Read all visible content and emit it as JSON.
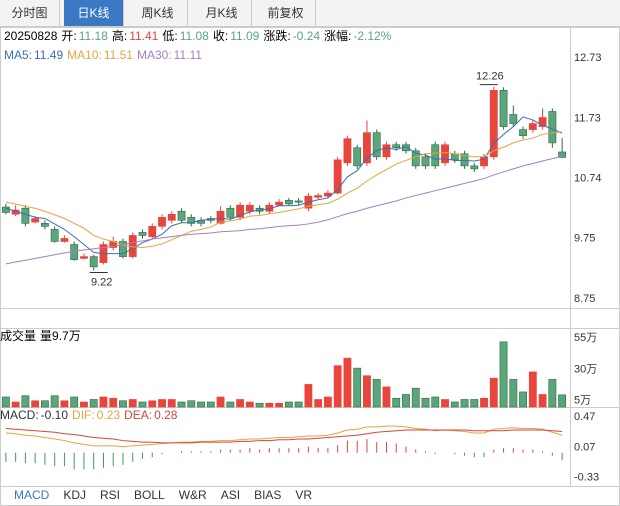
{
  "tabs": [
    "分时图",
    "日K线",
    "周K线",
    "月K线",
    "前复权"
  ],
  "active_tab": 1,
  "info": {
    "date": "20250828",
    "open_label": "开:",
    "high_label": "高:",
    "low_label": "低:",
    "close_label": "收:",
    "change_label": "涨跌:",
    "change": -0.24,
    "change_pct_label": "涨幅:",
    "change_pct": {
      "value": -2.12,
      "label": "-2.12%"
    }
  },
  "chart_data": [
    {
      "type": "candlestick",
      "up_color": "#e8453c",
      "down_color": "#5aa57a",
      "ylim": [
        8.6,
        13.23
      ],
      "yticks": [
        12.73,
        11.73,
        10.74,
        9.75,
        8.75
      ],
      "open": [
        10.27,
        10.15,
        10.25,
        10.02,
        10.0,
        9.9,
        9.7,
        9.65,
        9.42,
        9.45,
        9.35,
        9.6,
        9.7,
        9.45,
        9.85,
        9.78,
        9.95,
        10.05,
        10.2,
        10.1,
        10.05,
        10.08,
        10.0,
        10.25,
        10.1,
        10.2,
        10.25,
        10.2,
        10.3,
        10.38,
        10.37,
        10.25,
        10.43,
        10.45,
        10.5,
        11.0,
        11.25,
        11.0,
        11.5,
        11.1,
        11.3,
        11.3,
        11.2,
        11.1,
        11.3,
        11.0,
        11.15,
        11.15,
        10.95,
        10.95,
        11.1,
        12.2,
        11.8,
        11.55,
        11.55,
        11.6,
        11.85,
        11.18
      ],
      "high": [
        10.32,
        10.3,
        10.3,
        10.12,
        10.05,
        9.95,
        9.8,
        9.7,
        9.5,
        9.48,
        9.7,
        9.78,
        9.75,
        9.85,
        9.9,
        10.0,
        10.15,
        10.2,
        10.25,
        10.15,
        10.1,
        10.12,
        10.28,
        10.3,
        10.35,
        10.35,
        10.3,
        10.35,
        10.4,
        10.42,
        10.42,
        10.5,
        10.5,
        10.55,
        11.1,
        11.45,
        11.3,
        11.7,
        11.55,
        11.35,
        11.35,
        11.35,
        11.25,
        11.15,
        11.35,
        11.35,
        11.2,
        11.2,
        11.0,
        11.15,
        12.26,
        12.25,
        11.95,
        11.6,
        11.7,
        11.9,
        11.9,
        11.41
      ],
      "low": [
        10.15,
        10.12,
        9.95,
        10.0,
        9.9,
        9.68,
        9.68,
        9.38,
        9.4,
        9.22,
        9.32,
        9.55,
        9.42,
        9.42,
        9.75,
        9.75,
        9.9,
        10.0,
        10.0,
        9.95,
        9.95,
        10.0,
        9.98,
        10.05,
        10.05,
        10.15,
        10.15,
        10.15,
        10.28,
        10.3,
        10.3,
        10.2,
        10.4,
        10.42,
        10.48,
        10.95,
        10.9,
        10.95,
        11.05,
        11.05,
        11.2,
        11.15,
        10.9,
        10.9,
        10.9,
        10.95,
        11.0,
        10.9,
        10.85,
        10.9,
        11.05,
        11.55,
        11.6,
        11.4,
        11.5,
        11.55,
        11.25,
        11.08
      ],
      "close": [
        10.18,
        10.22,
        10.0,
        10.08,
        9.95,
        9.7,
        9.75,
        9.4,
        9.45,
        9.28,
        9.65,
        9.7,
        9.45,
        9.8,
        9.8,
        9.95,
        10.1,
        10.15,
        10.05,
        10.0,
        10.0,
        10.05,
        10.2,
        10.1,
        10.3,
        10.3,
        10.2,
        10.3,
        10.35,
        10.32,
        10.35,
        10.45,
        10.46,
        10.5,
        11.05,
        11.4,
        10.95,
        11.5,
        11.1,
        11.3,
        11.25,
        11.2,
        10.95,
        10.95,
        10.95,
        11.3,
        11.05,
        10.95,
        10.9,
        11.1,
        12.2,
        11.6,
        11.65,
        11.45,
        11.65,
        11.75,
        11.33,
        11.09
      ],
      "series": [
        {
          "name": "MA5:",
          "color": "#3b6fb5",
          "values": [
            10.25,
            10.2,
            10.15,
            10.1,
            10.08,
            9.99,
            9.9,
            9.78,
            9.65,
            9.52,
            9.5,
            9.5,
            9.5,
            9.58,
            9.68,
            9.74,
            9.82,
            9.96,
            10.01,
            10.01,
            10.05,
            10.07,
            10.08,
            10.07,
            10.13,
            10.19,
            10.22,
            10.24,
            10.29,
            10.29,
            10.3,
            10.35,
            10.39,
            10.42,
            10.56,
            10.77,
            10.87,
            11.08,
            11.2,
            11.25,
            11.22,
            11.27,
            11.16,
            11.13,
            11.06,
            11.07,
            11.04,
            11.04,
            11.03,
            11.06,
            11.32,
            11.47,
            11.6,
            11.76,
            11.71,
            11.62,
            11.56,
            11.49
          ]
        },
        {
          "name": "MA10:",
          "color": "#e3a43f",
          "values": [
            10.35,
            10.32,
            10.28,
            10.25,
            10.2,
            10.14,
            10.08,
            10.0,
            9.92,
            9.8,
            9.74,
            9.7,
            9.64,
            9.61,
            9.6,
            9.62,
            9.66,
            9.73,
            9.8,
            9.87,
            9.9,
            9.94,
            10.02,
            10.04,
            10.07,
            10.12,
            10.13,
            10.16,
            10.18,
            10.21,
            10.24,
            10.28,
            10.31,
            10.33,
            10.4,
            10.5,
            10.58,
            10.7,
            10.8,
            10.89,
            10.98,
            11.04,
            11.1,
            11.15,
            11.16,
            11.17,
            11.15,
            11.12,
            11.1,
            11.1,
            11.2,
            11.26,
            11.33,
            11.38,
            11.41,
            11.47,
            11.5,
            11.51
          ]
        },
        {
          "name": "MA30:",
          "color": "#a77fc0",
          "values": [
            9.33,
            9.36,
            9.39,
            9.42,
            9.45,
            9.48,
            9.51,
            9.54,
            9.56,
            9.58,
            9.6,
            9.62,
            9.65,
            9.68,
            9.71,
            9.74,
            9.76,
            9.78,
            9.8,
            9.82,
            9.83,
            9.84,
            9.86,
            9.87,
            9.88,
            9.9,
            9.91,
            9.93,
            9.95,
            9.96,
            9.97,
            9.99,
            10.02,
            10.06,
            10.11,
            10.16,
            10.2,
            10.25,
            10.29,
            10.33,
            10.37,
            10.42,
            10.46,
            10.5,
            10.54,
            10.58,
            10.62,
            10.66,
            10.7,
            10.74,
            10.8,
            10.85,
            10.9,
            10.95,
            10.99,
            11.03,
            11.07,
            11.11
          ]
        }
      ]
    },
    {
      "type": "bar",
      "title": "成交量",
      "legend": "量9.7万",
      "ylim": [
        0,
        63
      ],
      "yticks": [
        {
          "value": 55,
          "label": "55万"
        },
        {
          "value": 30,
          "label": "30万"
        },
        {
          "value": 5,
          "label": "5万"
        }
      ],
      "values": [
        8,
        4,
        9,
        5,
        5,
        9,
        5,
        8,
        4,
        6,
        8,
        7,
        5,
        6,
        4,
        5,
        6,
        6,
        4,
        5,
        4,
        4,
        8,
        4,
        6,
        4,
        3,
        3,
        3,
        4,
        4,
        18,
        6,
        8,
        33,
        39,
        31,
        25,
        22,
        16,
        7,
        10,
        15,
        7,
        8,
        6,
        4,
        6,
        6,
        7,
        23,
        52,
        22,
        12,
        28,
        10,
        22,
        9.7
      ]
    },
    {
      "type": "macd",
      "up_color": "#e8453c",
      "down_color": "#3f9a5f",
      "ylim": [
        -0.44,
        0.59
      ],
      "yticks": [
        0.47,
        0.07,
        -0.33
      ],
      "series": [
        {
          "name": "MACD:",
          "value_label": "-0.10",
          "color": "#333333",
          "values": [
            -0.12,
            -0.12,
            -0.14,
            -0.14,
            -0.16,
            -0.18,
            -0.18,
            -0.22,
            -0.22,
            -0.22,
            -0.2,
            -0.18,
            -0.16,
            -0.12,
            -0.08,
            -0.06,
            -0.02,
            0,
            0.02,
            0.02,
            0.02,
            0.02,
            0.04,
            0.04,
            0.04,
            0.06,
            0.04,
            0.06,
            0.06,
            0.06,
            0.06,
            0.08,
            0.06,
            0.06,
            0.1,
            0.16,
            0.16,
            0.18,
            0.14,
            0.14,
            0.12,
            0.08,
            0.04,
            0.02,
            -0.02,
            0,
            -0.02,
            -0.04,
            -0.06,
            -0.06,
            0.04,
            0.06,
            0.06,
            0.04,
            0.04,
            0.02,
            -0.04,
            -0.1
          ]
        },
        {
          "name": "DIF:",
          "value_label": "0.23",
          "color": "#e3a43f",
          "values": [
            0.26,
            0.25,
            0.23,
            0.22,
            0.2,
            0.18,
            0.16,
            0.13,
            0.11,
            0.09,
            0.09,
            0.09,
            0.08,
            0.09,
            0.1,
            0.11,
            0.12,
            0.13,
            0.14,
            0.14,
            0.15,
            0.15,
            0.16,
            0.16,
            0.17,
            0.18,
            0.18,
            0.19,
            0.2,
            0.2,
            0.21,
            0.22,
            0.22,
            0.23,
            0.26,
            0.3,
            0.31,
            0.34,
            0.34,
            0.35,
            0.35,
            0.34,
            0.32,
            0.31,
            0.29,
            0.3,
            0.29,
            0.28,
            0.26,
            0.26,
            0.31,
            0.32,
            0.33,
            0.32,
            0.32,
            0.31,
            0.27,
            0.23
          ]
        },
        {
          "name": "DEA:",
          "value_label": "0.28",
          "color": "#d9453a",
          "values": [
            0.32,
            0.31,
            0.3,
            0.29,
            0.28,
            0.27,
            0.25,
            0.24,
            0.22,
            0.2,
            0.19,
            0.18,
            0.16,
            0.15,
            0.14,
            0.14,
            0.13,
            0.13,
            0.13,
            0.13,
            0.14,
            0.14,
            0.14,
            0.14,
            0.15,
            0.15,
            0.16,
            0.16,
            0.17,
            0.17,
            0.18,
            0.18,
            0.19,
            0.2,
            0.21,
            0.22,
            0.23,
            0.25,
            0.27,
            0.28,
            0.29,
            0.3,
            0.3,
            0.3,
            0.3,
            0.3,
            0.3,
            0.3,
            0.29,
            0.29,
            0.29,
            0.29,
            0.3,
            0.3,
            0.3,
            0.3,
            0.29,
            0.28
          ]
        }
      ]
    }
  ],
  "indicator_tabs": [
    "MACD",
    "KDJ",
    "RSI",
    "BOLL",
    "W&R",
    "ASI",
    "BIAS",
    "VR"
  ],
  "active_indicator": 0
}
